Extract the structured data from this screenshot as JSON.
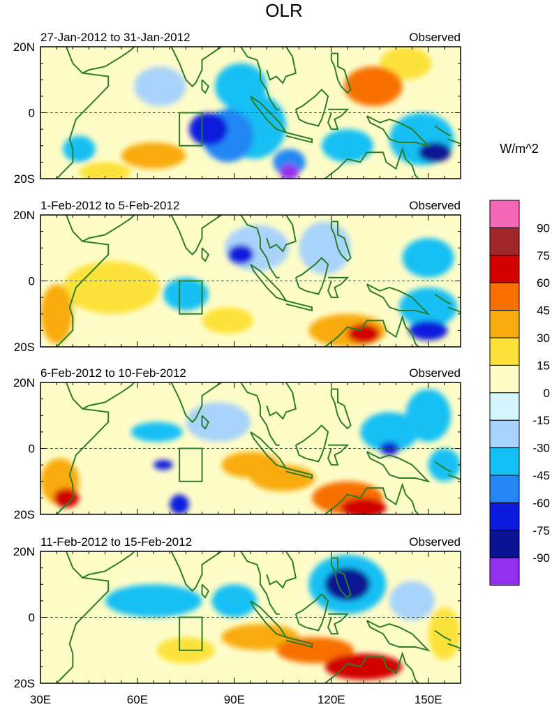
{
  "chart_data": {
    "type": "heatmap",
    "title": "OLR",
    "units_label": "W/m^2",
    "x_ticks": [
      "30E",
      "60E",
      "90E",
      "120E",
      "150E"
    ],
    "x_tick_values": [
      30,
      60,
      90,
      120,
      150
    ],
    "xlim": [
      30,
      160
    ],
    "y_ticks": [
      "20N",
      "0",
      "20S"
    ],
    "y_tick_values": [
      20,
      0,
      -20
    ],
    "ylim": [
      -20,
      20
    ],
    "colorbar": {
      "labels": [
        "90",
        "75",
        "60",
        "45",
        "30",
        "15",
        "0",
        "-15",
        "-30",
        "-45",
        "-60",
        "-75",
        "-90"
      ],
      "colors": [
        "#f468b8",
        "#a0262a",
        "#d20000",
        "#f87000",
        "#f9ab0f",
        "#fde23b",
        "#fefdc8",
        "#d4f6fd",
        "#a8d3fa",
        "#12c0f4",
        "#2487f4",
        "#0c1adc",
        "#0b1293",
        "#9330ee"
      ]
    },
    "panels": [
      {
        "period": "27-Jan-2012 to 31-Jan-2012",
        "source": "Observed",
        "anomalies": [
          {
            "lon": 82,
            "lat": -5,
            "value": -75,
            "rx": 6,
            "ry": 5
          },
          {
            "lon": 88,
            "lat": -7,
            "value": -50,
            "rx": 8,
            "ry": 8
          },
          {
            "lon": 96,
            "lat": -4,
            "value": -45,
            "rx": 10,
            "ry": 10
          },
          {
            "lon": 92,
            "lat": 8,
            "value": -40,
            "rx": 8,
            "ry": 7
          },
          {
            "lon": 107,
            "lat": -18,
            "value": -95,
            "rx": 3,
            "ry": 2.5
          },
          {
            "lon": 107,
            "lat": -15,
            "value": -60,
            "rx": 5,
            "ry": 4
          },
          {
            "lon": 152,
            "lat": -12,
            "value": -80,
            "rx": 5,
            "ry": 3
          },
          {
            "lon": 148,
            "lat": -8,
            "value": -40,
            "rx": 10,
            "ry": 8
          },
          {
            "lon": 125,
            "lat": -10,
            "value": -35,
            "rx": 8,
            "ry": 5
          },
          {
            "lon": 42,
            "lat": -11,
            "value": -35,
            "rx": 5,
            "ry": 4
          },
          {
            "lon": 65,
            "lat": -13,
            "value": 40,
            "rx": 10,
            "ry": 4
          },
          {
            "lon": 133,
            "lat": 8,
            "value": 45,
            "rx": 9,
            "ry": 6
          },
          {
            "lon": 143,
            "lat": 15,
            "value": 25,
            "rx": 8,
            "ry": 5
          },
          {
            "lon": 67,
            "lat": 8,
            "value": -20,
            "rx": 8,
            "ry": 6
          },
          {
            "lon": 50,
            "lat": -18,
            "value": 20,
            "rx": 8,
            "ry": 3
          }
        ]
      },
      {
        "period": "1-Feb-2012 to 5-Feb-2012",
        "source": "Observed",
        "anomalies": [
          {
            "lon": 92,
            "lat": 8,
            "value": -65,
            "rx": 4,
            "ry": 3
          },
          {
            "lon": 97,
            "lat": 10,
            "value": -30,
            "rx": 10,
            "ry": 7
          },
          {
            "lon": 75,
            "lat": -4,
            "value": -45,
            "rx": 7,
            "ry": 5
          },
          {
            "lon": 150,
            "lat": -15,
            "value": -70,
            "rx": 6,
            "ry": 3
          },
          {
            "lon": 150,
            "lat": -8,
            "value": -40,
            "rx": 9,
            "ry": 6
          },
          {
            "lon": 150,
            "lat": 7,
            "value": -35,
            "rx": 8,
            "ry": 6
          },
          {
            "lon": 118,
            "lat": 10,
            "value": -30,
            "rx": 8,
            "ry": 8
          },
          {
            "lon": 130,
            "lat": -16,
            "value": 65,
            "rx": 5,
            "ry": 3
          },
          {
            "lon": 125,
            "lat": -15,
            "value": 40,
            "rx": 12,
            "ry": 5
          },
          {
            "lon": 35,
            "lat": -10,
            "value": 40,
            "rx": 5,
            "ry": 9
          },
          {
            "lon": 88,
            "lat": -12,
            "value": 25,
            "rx": 8,
            "ry": 4
          },
          {
            "lon": 52,
            "lat": -2,
            "value": 15,
            "rx": 15,
            "ry": 8
          }
        ]
      },
      {
        "period": "6-Feb-2012 to 10-Feb-2012",
        "source": "Observed",
        "anomalies": [
          {
            "lon": 68,
            "lat": -5,
            "value": -70,
            "rx": 3,
            "ry": 1.5
          },
          {
            "lon": 66,
            "lat": 5,
            "value": -40,
            "rx": 8,
            "ry": 3
          },
          {
            "lon": 138,
            "lat": 0,
            "value": -70,
            "rx": 3,
            "ry": 2
          },
          {
            "lon": 138,
            "lat": 5,
            "value": -40,
            "rx": 9,
            "ry": 6
          },
          {
            "lon": 150,
            "lat": 10,
            "value": -35,
            "rx": 7,
            "ry": 8
          },
          {
            "lon": 155,
            "lat": -5,
            "value": -45,
            "rx": 5,
            "ry": 5
          },
          {
            "lon": 73,
            "lat": -17,
            "value": -65,
            "rx": 3,
            "ry": 3
          },
          {
            "lon": 130,
            "lat": -18,
            "value": 70,
            "rx": 7,
            "ry": 3
          },
          {
            "lon": 125,
            "lat": -15,
            "value": 45,
            "rx": 11,
            "ry": 5
          },
          {
            "lon": 95,
            "lat": -5,
            "value": 40,
            "rx": 9,
            "ry": 4
          },
          {
            "lon": 105,
            "lat": -9,
            "value": 35,
            "rx": 10,
            "ry": 4
          },
          {
            "lon": 38,
            "lat": -15,
            "value": 65,
            "rx": 4,
            "ry": 3
          },
          {
            "lon": 36,
            "lat": -10,
            "value": 30,
            "rx": 6,
            "ry": 7
          },
          {
            "lon": 85,
            "lat": 8,
            "value": -25,
            "rx": 10,
            "ry": 6
          }
        ]
      },
      {
        "period": "11-Feb-2012 to 15-Feb-2012",
        "source": "Observed",
        "anomalies": [
          {
            "lon": 125,
            "lat": 10,
            "value": -80,
            "rx": 7,
            "ry": 5
          },
          {
            "lon": 125,
            "lat": 10,
            "value": -45,
            "rx": 12,
            "ry": 9
          },
          {
            "lon": 65,
            "lat": 5,
            "value": -40,
            "rx": 15,
            "ry": 5
          },
          {
            "lon": 90,
            "lat": 5,
            "value": -35,
            "rx": 7,
            "ry": 5
          },
          {
            "lon": 130,
            "lat": -15,
            "value": 70,
            "rx": 12,
            "ry": 4
          },
          {
            "lon": 115,
            "lat": -10,
            "value": 45,
            "rx": 12,
            "ry": 4
          },
          {
            "lon": 98,
            "lat": -6,
            "value": 30,
            "rx": 12,
            "ry": 4
          },
          {
            "lon": 75,
            "lat": -10,
            "value": 25,
            "rx": 9,
            "ry": 4
          },
          {
            "lon": 155,
            "lat": -5,
            "value": 25,
            "rx": 5,
            "ry": 8
          },
          {
            "lon": 145,
            "lat": 5,
            "value": -20,
            "rx": 7,
            "ry": 6
          }
        ]
      }
    ]
  }
}
